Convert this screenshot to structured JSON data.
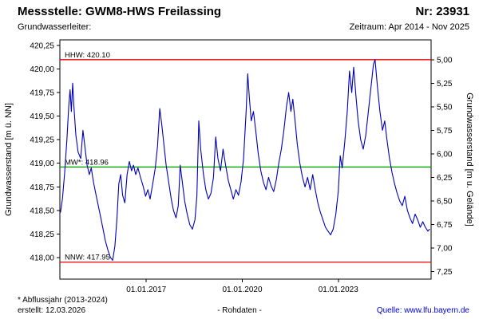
{
  "header": {
    "title": "Messstelle: GWM8-HWS Freilassing",
    "number": "Nr: 23931",
    "aquifer_label": "Grundwasserleiter:",
    "period": "Zeitraum: Apr 2014 - Nov 2025"
  },
  "footer": {
    "note": "* Abflussjahr (2013-2024)",
    "created": "erstellt: 12.03.2026",
    "center": "- Rohdaten -",
    "source_label": "Quelle:",
    "source_url": "www.lfu.bayern.de"
  },
  "chart_data": {
    "type": "line",
    "title": "Messstelle: GWM8-HWS Freilassing",
    "grid": false,
    "legend": "none",
    "y_left": {
      "label": "Grundwasserstand [m ü. NN]",
      "range": [
        417.77,
        420.31
      ],
      "ticks": [
        {
          "label": "420,25",
          "value": 420.25
        },
        {
          "label": "420,00",
          "value": 420.0
        },
        {
          "label": "419,75",
          "value": 419.75
        },
        {
          "label": "419,50",
          "value": 419.5
        },
        {
          "label": "419,25",
          "value": 419.25
        },
        {
          "label": "419,00",
          "value": 419.0
        },
        {
          "label": "418,75",
          "value": 418.75
        },
        {
          "label": "418,50",
          "value": 418.5
        },
        {
          "label": "418,25",
          "value": 418.25
        },
        {
          "label": "418,00",
          "value": 418.0
        }
      ]
    },
    "y_right": {
      "label": "Grundwasserstand [m u. Gelände]",
      "range": [
        4.79,
        7.33
      ],
      "ticks": [
        {
          "label": "5,00",
          "value": 5.0
        },
        {
          "label": "5,25",
          "value": 5.25
        },
        {
          "label": "5,50",
          "value": 5.5
        },
        {
          "label": "5,75",
          "value": 5.75
        },
        {
          "label": "6,00",
          "value": 6.0
        },
        {
          "label": "6,25",
          "value": 6.25
        },
        {
          "label": "6,50",
          "value": 6.5
        },
        {
          "label": "6,75",
          "value": 6.75
        },
        {
          "label": "7,00",
          "value": 7.0
        },
        {
          "label": "7,25",
          "value": 7.25
        }
      ]
    },
    "x": {
      "range": [
        2014.3,
        2025.9
      ],
      "ticks": [
        {
          "label": "01.01.2017",
          "value": 2017.0
        },
        {
          "label": "01.01.2020",
          "value": 2020.0
        },
        {
          "label": "01.01.2023",
          "value": 2023.0
        }
      ]
    },
    "reference_lines": [
      {
        "name": "hhw",
        "label": "HHW: 420.10",
        "value": 420.1,
        "color": "#e80000"
      },
      {
        "name": "mw",
        "label": "MW*: 418.96",
        "value": 418.96,
        "color": "#00a000"
      },
      {
        "name": "nnw",
        "label": "NNW: 417.95",
        "value": 417.95,
        "color": "#e80000"
      }
    ],
    "series": [
      {
        "name": "Grundwasserstand Rohdaten",
        "color": "#0000bb",
        "points": [
          [
            2014.32,
            418.48
          ],
          [
            2014.38,
            418.62
          ],
          [
            2014.45,
            418.9
          ],
          [
            2014.52,
            419.25
          ],
          [
            2014.58,
            419.62
          ],
          [
            2014.62,
            419.78
          ],
          [
            2014.66,
            419.55
          ],
          [
            2014.7,
            419.85
          ],
          [
            2014.74,
            419.6
          ],
          [
            2014.8,
            419.3
          ],
          [
            2014.87,
            419.12
          ],
          [
            2014.95,
            419.05
          ],
          [
            2015.02,
            419.35
          ],
          [
            2015.08,
            419.18
          ],
          [
            2015.15,
            418.98
          ],
          [
            2015.22,
            418.88
          ],
          [
            2015.28,
            418.95
          ],
          [
            2015.35,
            418.8
          ],
          [
            2015.42,
            418.68
          ],
          [
            2015.5,
            418.55
          ],
          [
            2015.58,
            418.42
          ],
          [
            2015.65,
            418.3
          ],
          [
            2015.72,
            418.18
          ],
          [
            2015.8,
            418.08
          ],
          [
            2015.88,
            418.0
          ],
          [
            2015.95,
            417.97
          ],
          [
            2016.02,
            418.12
          ],
          [
            2016.08,
            418.4
          ],
          [
            2016.14,
            418.78
          ],
          [
            2016.2,
            418.88
          ],
          [
            2016.26,
            418.66
          ],
          [
            2016.33,
            418.58
          ],
          [
            2016.4,
            418.88
          ],
          [
            2016.47,
            419.02
          ],
          [
            2016.54,
            418.92
          ],
          [
            2016.6,
            418.98
          ],
          [
            2016.67,
            418.88
          ],
          [
            2016.74,
            418.95
          ],
          [
            2016.82,
            418.85
          ],
          [
            2016.9,
            418.76
          ],
          [
            2016.98,
            418.65
          ],
          [
            2017.05,
            418.72
          ],
          [
            2017.12,
            418.62
          ],
          [
            2017.2,
            418.78
          ],
          [
            2017.28,
            418.95
          ],
          [
            2017.35,
            419.18
          ],
          [
            2017.42,
            419.58
          ],
          [
            2017.48,
            419.42
          ],
          [
            2017.55,
            419.2
          ],
          [
            2017.62,
            418.98
          ],
          [
            2017.7,
            418.8
          ],
          [
            2017.78,
            418.62
          ],
          [
            2017.85,
            418.5
          ],
          [
            2017.93,
            418.42
          ],
          [
            2018.0,
            418.55
          ],
          [
            2018.06,
            418.98
          ],
          [
            2018.12,
            418.82
          ],
          [
            2018.2,
            418.6
          ],
          [
            2018.28,
            418.46
          ],
          [
            2018.36,
            418.35
          ],
          [
            2018.44,
            418.3
          ],
          [
            2018.52,
            418.4
          ],
          [
            2018.58,
            418.65
          ],
          [
            2018.64,
            419.45
          ],
          [
            2018.7,
            419.15
          ],
          [
            2018.78,
            418.9
          ],
          [
            2018.86,
            418.72
          ],
          [
            2018.94,
            418.62
          ],
          [
            2019.02,
            418.68
          ],
          [
            2019.1,
            418.85
          ],
          [
            2019.17,
            419.28
          ],
          [
            2019.24,
            419.05
          ],
          [
            2019.32,
            418.92
          ],
          [
            2019.4,
            419.15
          ],
          [
            2019.48,
            418.98
          ],
          [
            2019.56,
            418.82
          ],
          [
            2019.64,
            418.72
          ],
          [
            2019.72,
            418.62
          ],
          [
            2019.8,
            418.72
          ],
          [
            2019.88,
            418.66
          ],
          [
            2019.96,
            418.8
          ],
          [
            2020.04,
            419.05
          ],
          [
            2020.12,
            419.55
          ],
          [
            2020.17,
            419.95
          ],
          [
            2020.22,
            419.7
          ],
          [
            2020.28,
            419.45
          ],
          [
            2020.35,
            419.55
          ],
          [
            2020.42,
            419.35
          ],
          [
            2020.5,
            419.1
          ],
          [
            2020.58,
            418.92
          ],
          [
            2020.66,
            418.8
          ],
          [
            2020.74,
            418.72
          ],
          [
            2020.82,
            418.85
          ],
          [
            2020.9,
            418.76
          ],
          [
            2020.98,
            418.7
          ],
          [
            2021.06,
            418.82
          ],
          [
            2021.14,
            419.0
          ],
          [
            2021.22,
            419.15
          ],
          [
            2021.3,
            419.35
          ],
          [
            2021.38,
            419.6
          ],
          [
            2021.45,
            419.75
          ],
          [
            2021.52,
            419.55
          ],
          [
            2021.58,
            419.68
          ],
          [
            2021.65,
            419.45
          ],
          [
            2021.72,
            419.2
          ],
          [
            2021.8,
            419.0
          ],
          [
            2021.88,
            418.85
          ],
          [
            2021.96,
            418.75
          ],
          [
            2022.04,
            418.85
          ],
          [
            2022.12,
            418.72
          ],
          [
            2022.2,
            418.88
          ],
          [
            2022.28,
            418.72
          ],
          [
            2022.36,
            418.58
          ],
          [
            2022.44,
            418.48
          ],
          [
            2022.52,
            418.4
          ],
          [
            2022.6,
            418.32
          ],
          [
            2022.68,
            418.28
          ],
          [
            2022.76,
            418.24
          ],
          [
            2022.84,
            418.3
          ],
          [
            2022.92,
            418.45
          ],
          [
            2023.0,
            418.7
          ],
          [
            2023.06,
            419.08
          ],
          [
            2023.12,
            418.95
          ],
          [
            2023.2,
            419.22
          ],
          [
            2023.28,
            419.55
          ],
          [
            2023.35,
            419.98
          ],
          [
            2023.42,
            419.75
          ],
          [
            2023.48,
            420.02
          ],
          [
            2023.55,
            419.72
          ],
          [
            2023.62,
            419.45
          ],
          [
            2023.7,
            419.25
          ],
          [
            2023.78,
            419.15
          ],
          [
            2023.86,
            419.3
          ],
          [
            2023.94,
            419.55
          ],
          [
            2024.02,
            419.8
          ],
          [
            2024.1,
            420.05
          ],
          [
            2024.15,
            420.1
          ],
          [
            2024.22,
            419.82
          ],
          [
            2024.3,
            419.55
          ],
          [
            2024.38,
            419.35
          ],
          [
            2024.45,
            419.45
          ],
          [
            2024.52,
            419.25
          ],
          [
            2024.6,
            419.05
          ],
          [
            2024.68,
            418.9
          ],
          [
            2024.76,
            418.78
          ],
          [
            2024.84,
            418.68
          ],
          [
            2024.92,
            418.6
          ],
          [
            2025.0,
            418.55
          ],
          [
            2025.08,
            418.65
          ],
          [
            2025.16,
            418.5
          ],
          [
            2025.24,
            418.42
          ],
          [
            2025.32,
            418.36
          ],
          [
            2025.4,
            418.46
          ],
          [
            2025.48,
            418.4
          ],
          [
            2025.56,
            418.32
          ],
          [
            2025.64,
            418.38
          ],
          [
            2025.72,
            418.32
          ],
          [
            2025.8,
            418.28
          ],
          [
            2025.85,
            418.3
          ]
        ]
      }
    ]
  }
}
